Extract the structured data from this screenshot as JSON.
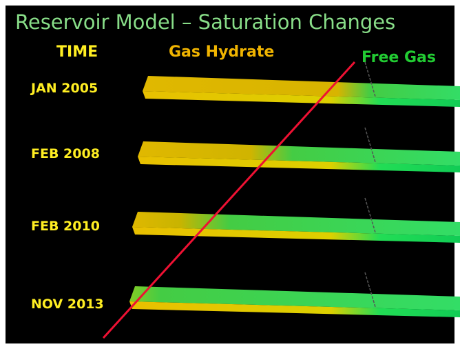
{
  "title": "Reservoir Model – Saturation Changes",
  "headers": {
    "time": "TIME",
    "hydrate": "Gas Hydrate",
    "free_gas": "Free Gas"
  },
  "rows": [
    {
      "label": "JAN 2005"
    },
    {
      "label": "FEB 2008"
    },
    {
      "label": "FEB 2010"
    },
    {
      "label": "NOV 2013"
    }
  ]
}
